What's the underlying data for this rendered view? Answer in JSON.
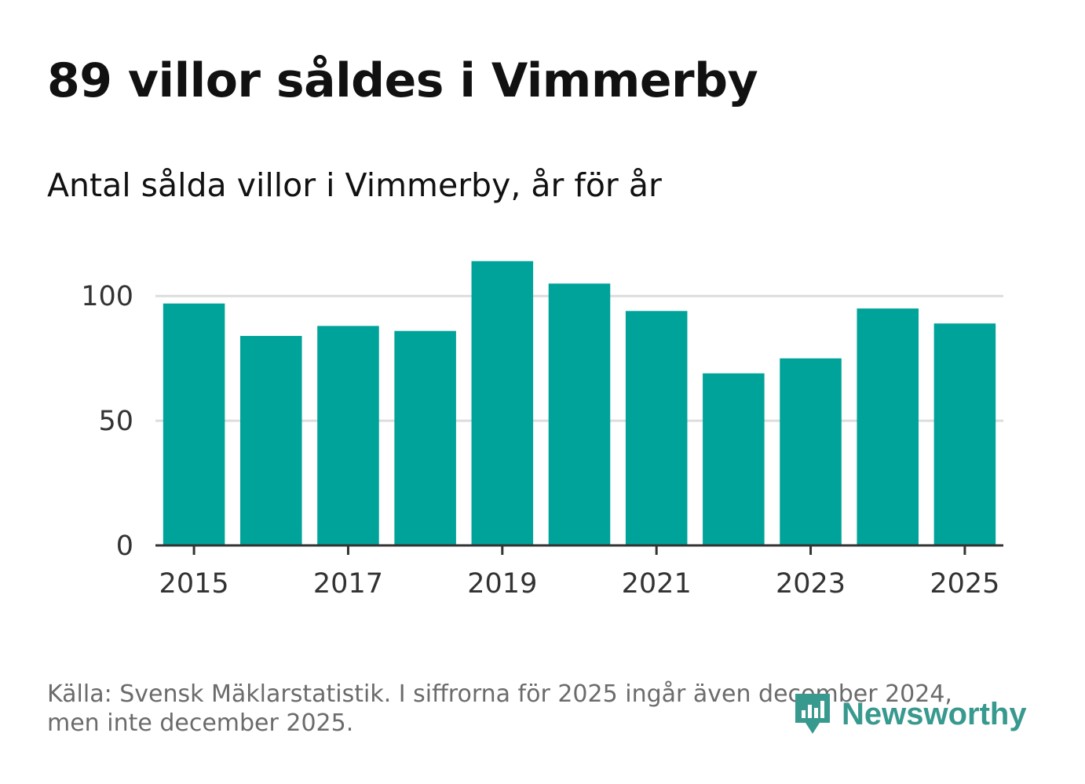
{
  "title": "89 villor såldes i Vimmerby",
  "subtitle": "Antal sålda villor i Vimmerby, år för år",
  "footer": {
    "source_line1": "Källa: Svensk Mäklarstatistik. I siffrorna för 2025 ingår även december 2024,",
    "source_line2": "men inte december 2025."
  },
  "brand": {
    "name": "Newsworthy",
    "icon": "newsworthy-logo-icon",
    "color": "#38998e"
  },
  "colors": {
    "bar": "#00a39a",
    "grid": "#dddddd",
    "axis": "#333333",
    "tick_text": "#333333"
  },
  "chart_data": {
    "type": "bar",
    "title": "89 villor såldes i Vimmerby",
    "subtitle": "Antal sålda villor i Vimmerby, år för år",
    "xlabel": "",
    "ylabel": "",
    "categories": [
      2015,
      2016,
      2017,
      2018,
      2019,
      2020,
      2021,
      2022,
      2023,
      2024,
      2025
    ],
    "values": [
      97,
      84,
      88,
      86,
      114,
      105,
      94,
      69,
      75,
      95,
      89
    ],
    "x_tick_labels": [
      "2015",
      "2017",
      "2019",
      "2021",
      "2023",
      "2025"
    ],
    "y_ticks": [
      0,
      50,
      100
    ],
    "ylim": [
      0,
      118
    ],
    "grid": true,
    "legend": "none"
  }
}
